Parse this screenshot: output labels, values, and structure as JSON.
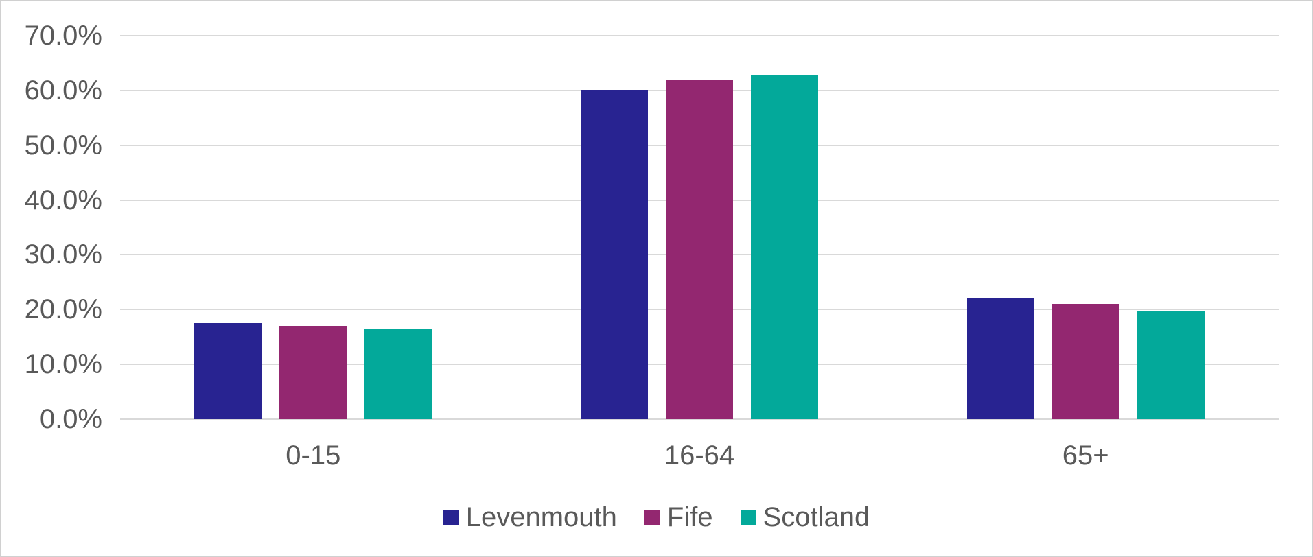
{
  "chart_data": {
    "type": "bar",
    "title": "",
    "categories": [
      "0-15",
      "16-64",
      "65+"
    ],
    "series": [
      {
        "name": "Levenmouth",
        "color": "#282391",
        "values": [
          17.5,
          60.1,
          22.2
        ]
      },
      {
        "name": "Fife",
        "color": "#932770",
        "values": [
          17.0,
          61.8,
          21.1
        ]
      },
      {
        "name": "Scotland",
        "color": "#03A99A",
        "values": [
          16.5,
          62.7,
          19.6
        ]
      }
    ],
    "ylabel": "",
    "xlabel": "",
    "ylim": [
      0,
      70
    ],
    "y_axis": {
      "min": 0,
      "max": 70,
      "step": 10,
      "tick_labels": [
        "0.0%",
        "10.0%",
        "20.0%",
        "30.0%",
        "40.0%",
        "50.0%",
        "60.0%",
        "70.0%"
      ]
    },
    "grid": true,
    "legend_position": "bottom",
    "style": {
      "text_color": "#595959",
      "gridline_color": "#d9d9d9",
      "background_color": "#ffffff",
      "border_color": "#d0d0d0"
    }
  }
}
